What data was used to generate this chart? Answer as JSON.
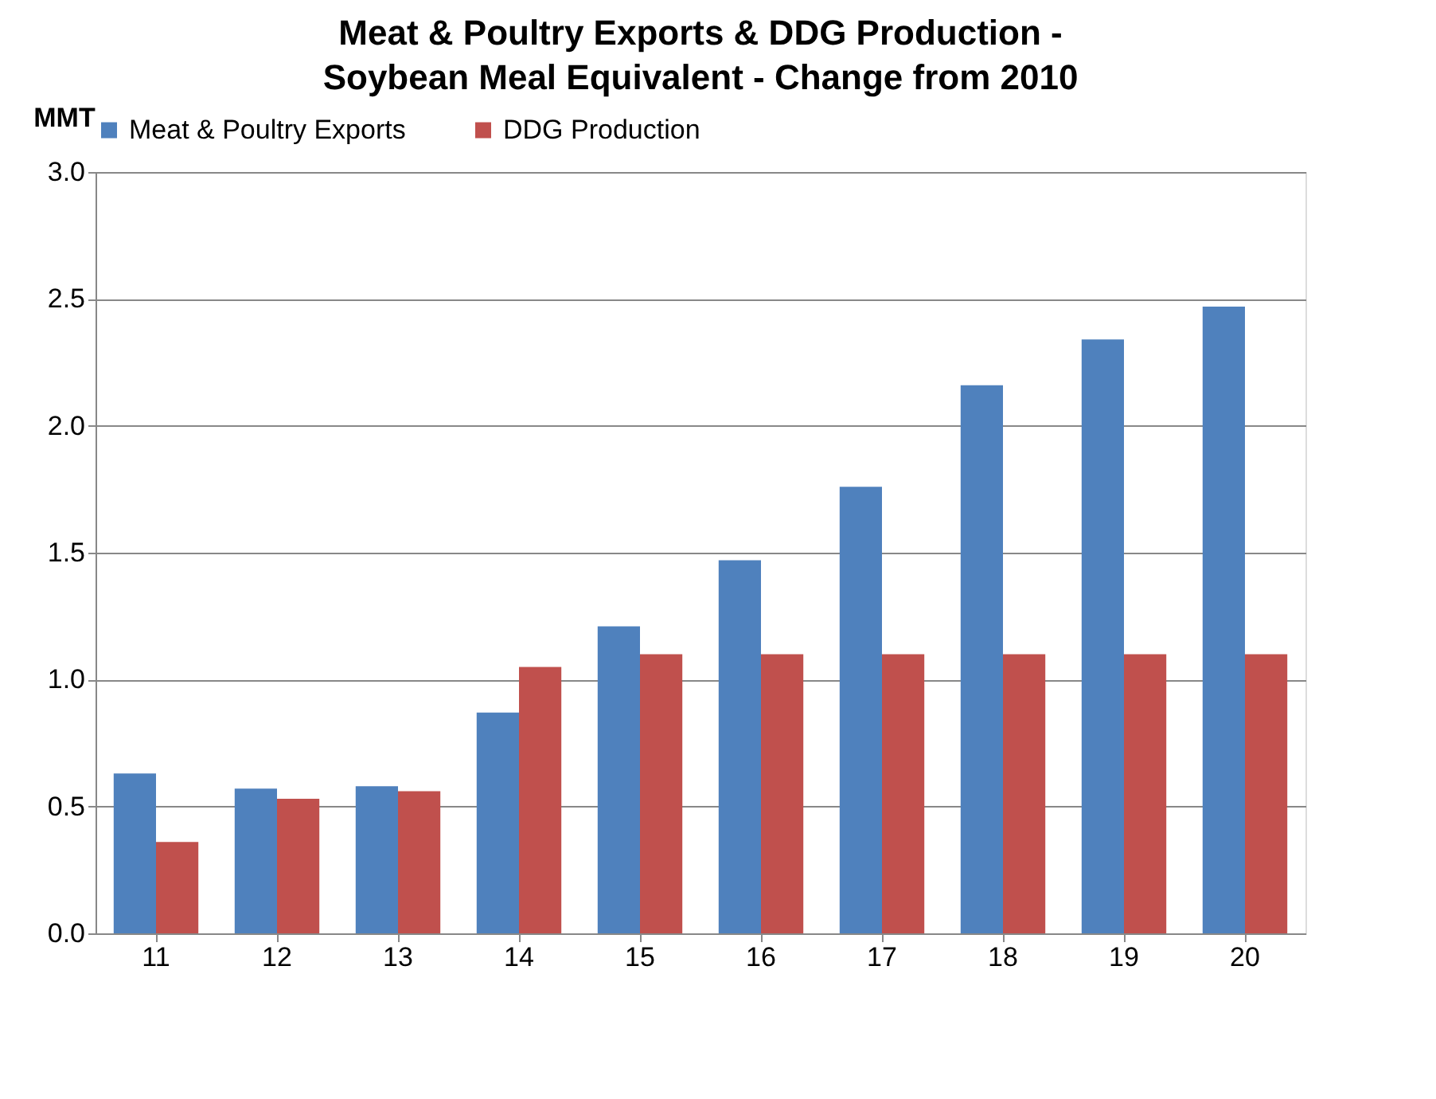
{
  "chart_data": {
    "type": "bar",
    "title": "Meat & Poultry Exports & DDG Production - Soybean Meal Equivalent - Change from 2010",
    "ylabel": "MMT",
    "categories": [
      "11",
      "12",
      "13",
      "14",
      "15",
      "16",
      "17",
      "18",
      "19",
      "20"
    ],
    "series": [
      {
        "name": "Meat & Poultry Exports",
        "color": "#4f81bd",
        "values": [
          0.63,
          0.57,
          0.58,
          0.87,
          1.21,
          1.47,
          1.76,
          2.16,
          2.34,
          2.47
        ]
      },
      {
        "name": "DDG Production",
        "color": "#c0504d",
        "values": [
          0.36,
          0.53,
          0.56,
          1.05,
          1.1,
          1.1,
          1.1,
          1.1,
          1.1,
          1.1
        ]
      }
    ],
    "ylim": [
      0,
      3
    ],
    "yticks": [
      {
        "value": 0,
        "label": "0.0"
      },
      {
        "value": 0.5,
        "label": "0.5"
      },
      {
        "value": 1,
        "label": "1.0"
      },
      {
        "value": 1.5,
        "label": "1.5"
      },
      {
        "value": 2,
        "label": "2.0"
      },
      {
        "value": 2.5,
        "label": "2.5"
      },
      {
        "value": 3,
        "label": "3.0"
      }
    ],
    "grid": "y",
    "legend": "top"
  }
}
